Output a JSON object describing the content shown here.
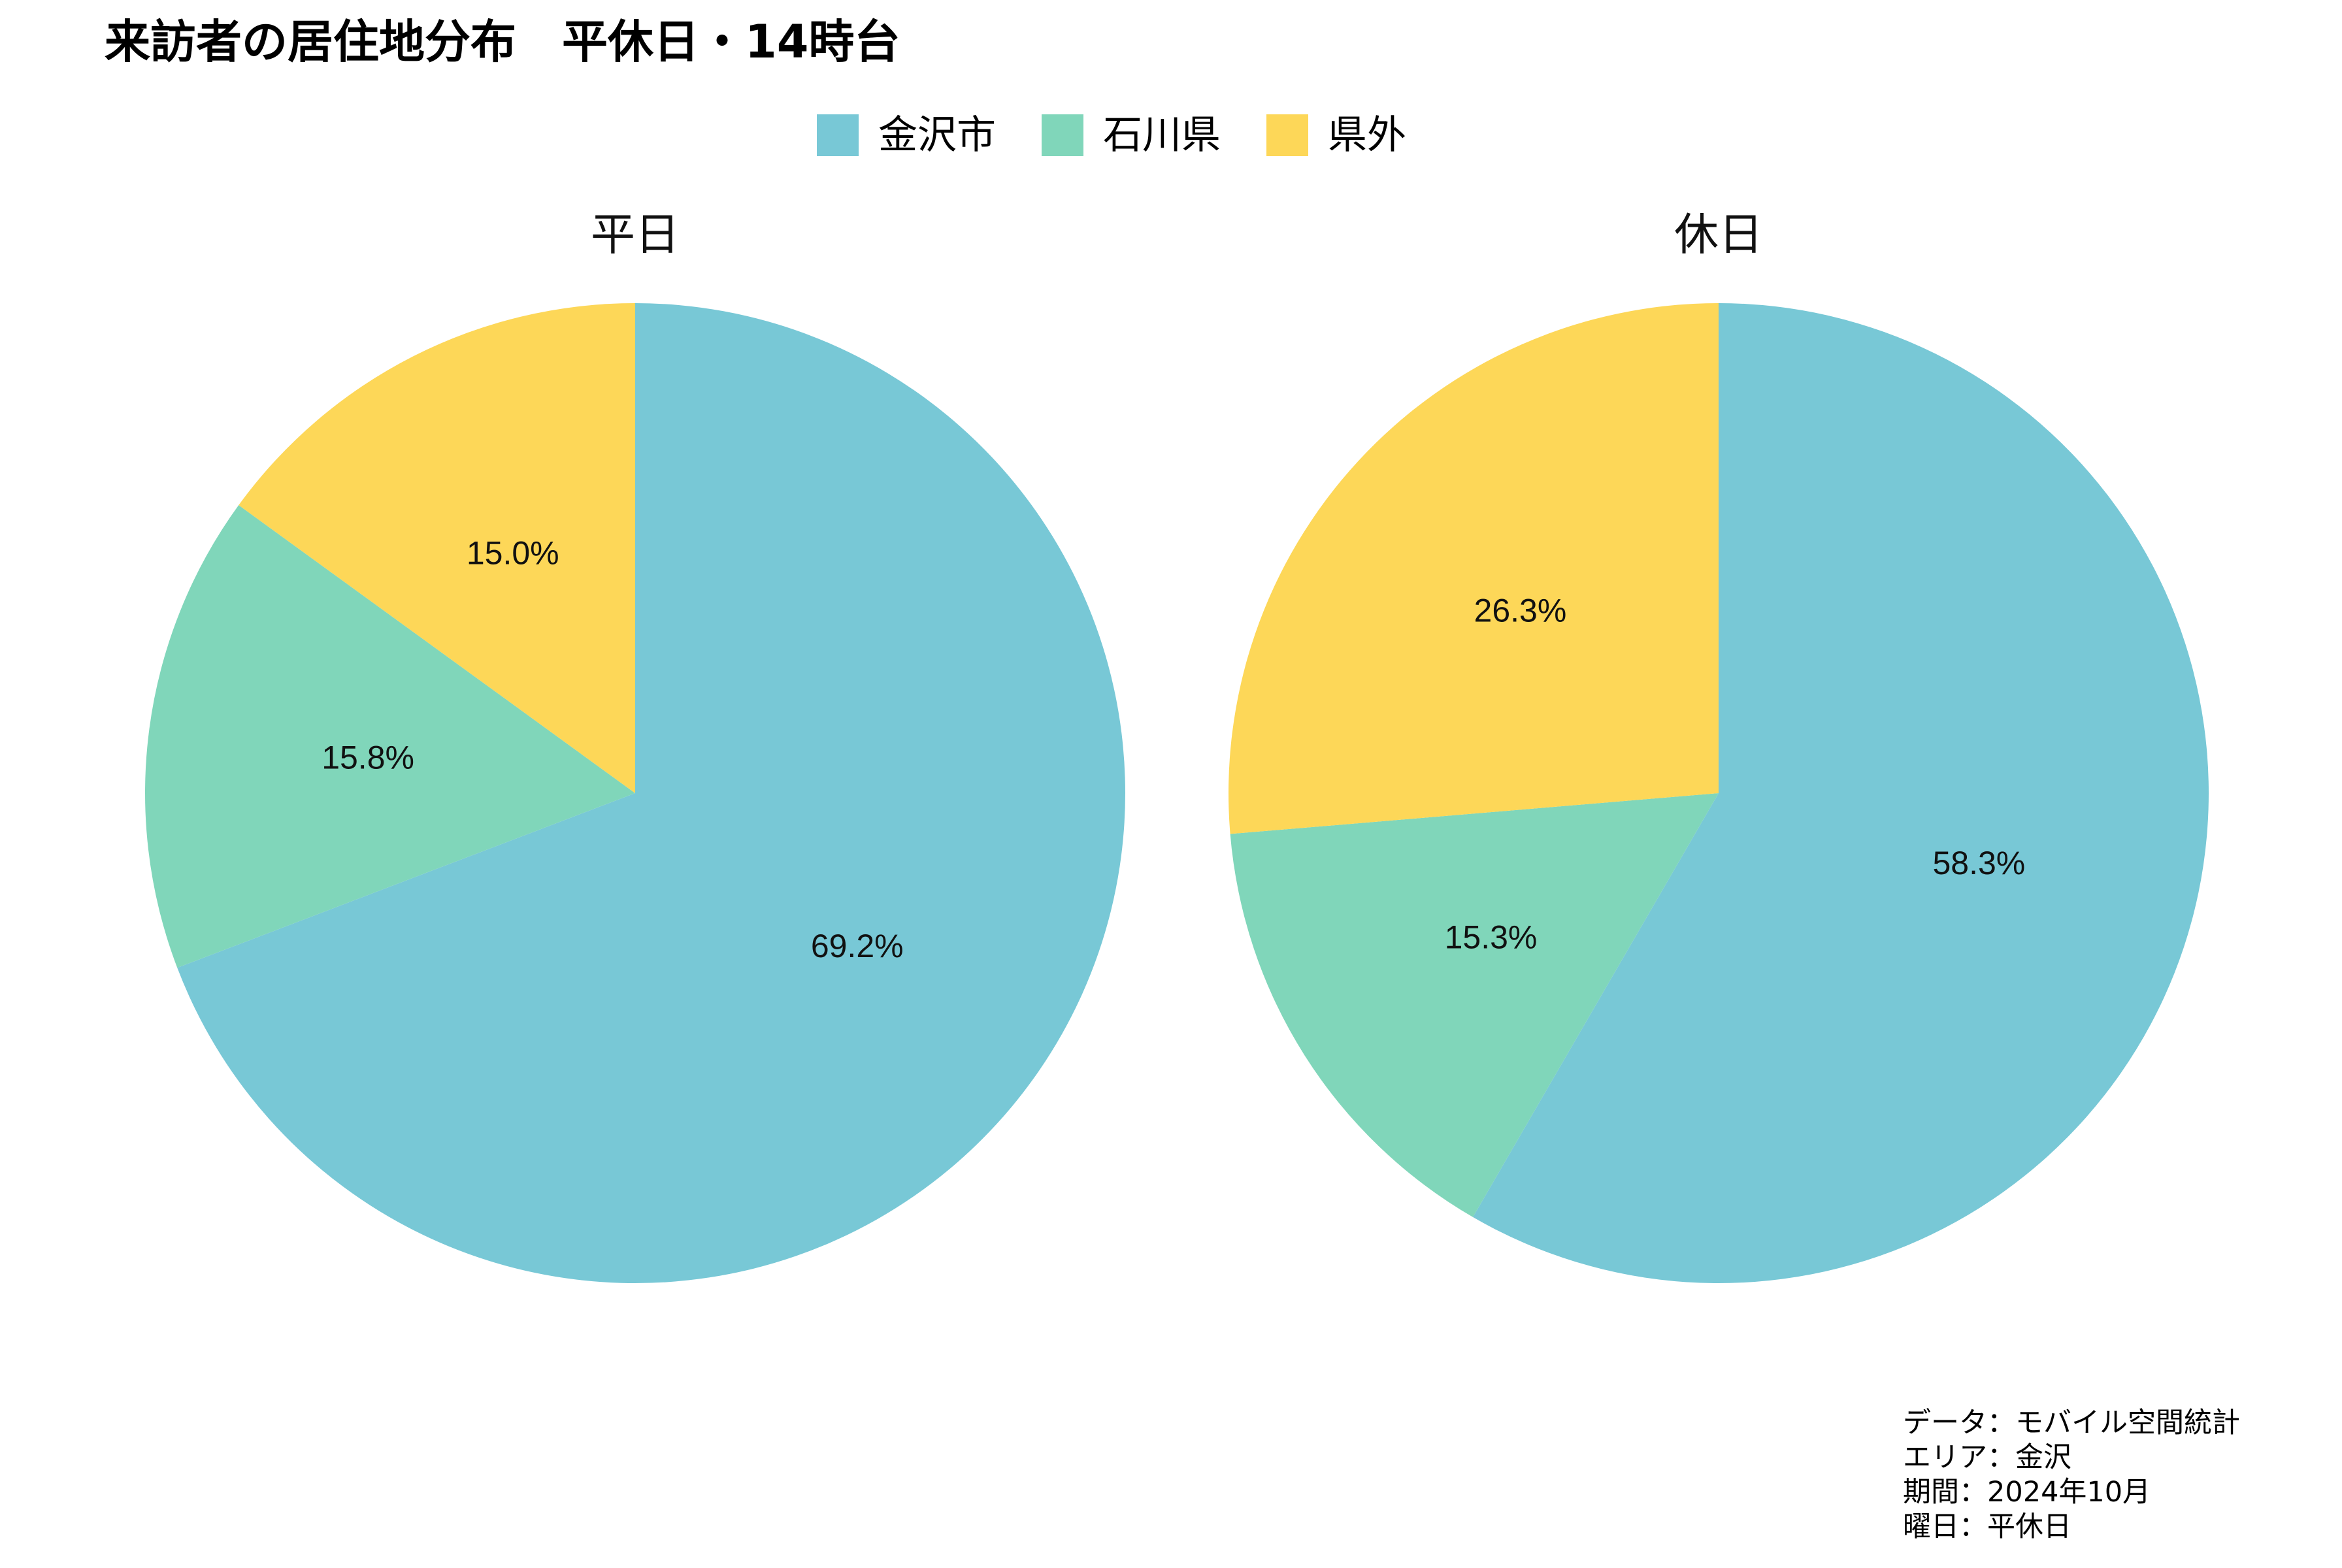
{
  "title": "来訪者の居住地分布　平休日・14時台",
  "legend": [
    {
      "label": "金沢市",
      "color": "#78c8d6"
    },
    {
      "label": "石川県",
      "color": "#80d6ba"
    },
    {
      "label": "県外",
      "color": "#fdd758"
    }
  ],
  "chart_data": [
    {
      "type": "pie",
      "title": "平日",
      "categories": [
        "金沢市",
        "石川県",
        "県外"
      ],
      "values": [
        69.2,
        15.8,
        15.0
      ],
      "labels": [
        "69.2%",
        "15.8%",
        "15.0%"
      ],
      "colors": [
        "#78c8d6",
        "#80d6ba",
        "#fdd758"
      ],
      "start": "top",
      "direction": "clockwise"
    },
    {
      "type": "pie",
      "title": "休日",
      "categories": [
        "金沢市",
        "石川県",
        "県外"
      ],
      "values": [
        58.3,
        15.3,
        26.3
      ],
      "labels": [
        "58.3%",
        "15.3%",
        "26.3%"
      ],
      "colors": [
        "#78c8d6",
        "#80d6ba",
        "#fdd758"
      ],
      "start": "top",
      "direction": "clockwise"
    }
  ],
  "note": [
    "データ：モバイル空間統計",
    "エリア：金沢",
    "期間：2024年10月",
    "曜日：平休日"
  ]
}
